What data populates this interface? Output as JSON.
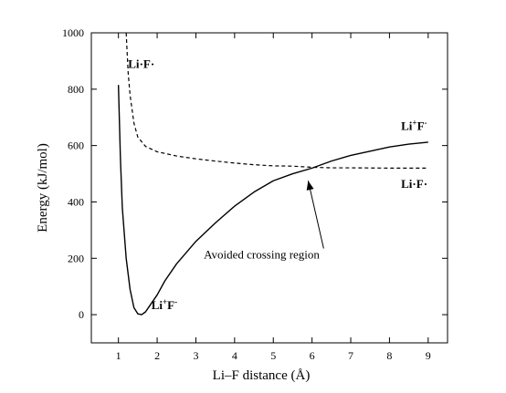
{
  "chart_data": {
    "type": "line",
    "xlabel": "Li–F distance (Å)",
    "ylabel": "Energy (kJ/mol)",
    "xlim": [
      0.3,
      9.5
    ],
    "ylim": [
      -100,
      1000
    ],
    "x_ticks": [
      "1",
      "2",
      "3",
      "4",
      "5",
      "6",
      "7",
      "8",
      "9"
    ],
    "y_ticks": [
      "0",
      "200",
      "400",
      "600",
      "800",
      "1000"
    ],
    "grid": false,
    "series": [
      {
        "style": "solid",
        "points": [
          [
            1.0,
            815
          ],
          [
            1.05,
            560
          ],
          [
            1.1,
            380
          ],
          [
            1.2,
            200
          ],
          [
            1.3,
            90
          ],
          [
            1.4,
            25
          ],
          [
            1.5,
            3
          ],
          [
            1.6,
            0
          ],
          [
            1.7,
            10
          ],
          [
            1.8,
            30
          ],
          [
            2.0,
            70
          ],
          [
            2.2,
            120
          ],
          [
            2.5,
            180
          ],
          [
            3.0,
            260
          ],
          [
            3.5,
            325
          ],
          [
            4.0,
            385
          ],
          [
            4.5,
            435
          ],
          [
            5.0,
            475
          ],
          [
            5.5,
            500
          ],
          [
            6.0,
            520
          ],
          [
            6.5,
            545
          ],
          [
            7.0,
            565
          ],
          [
            7.5,
            580
          ],
          [
            8.0,
            595
          ],
          [
            8.5,
            605
          ],
          [
            9.0,
            612
          ]
        ]
      },
      {
        "style": "dashed",
        "points": [
          [
            1.2,
            1000
          ],
          [
            1.25,
            860
          ],
          [
            1.3,
            780
          ],
          [
            1.4,
            680
          ],
          [
            1.5,
            630
          ],
          [
            1.7,
            597
          ],
          [
            2.0,
            578
          ],
          [
            2.5,
            563
          ],
          [
            3.0,
            553
          ],
          [
            3.5,
            545
          ],
          [
            4.0,
            538
          ],
          [
            4.5,
            532
          ],
          [
            5.0,
            528
          ],
          [
            5.5,
            527
          ],
          [
            6.0,
            523
          ],
          [
            6.5,
            521
          ],
          [
            7.0,
            521
          ],
          [
            8.0,
            520
          ],
          [
            9.0,
            520
          ]
        ]
      }
    ],
    "annotations": [
      {
        "base": "Li",
        "sup": "",
        "mid": "·F",
        "sup2": "",
        "tail": "·",
        "x": 1.25,
        "y": 875,
        "anchor": "start"
      },
      {
        "base": "Li",
        "sup": "+",
        "mid": "F",
        "sup2": "-",
        "tail": "",
        "x": 8.3,
        "y": 655,
        "anchor": "start"
      },
      {
        "base": "Li",
        "sup": "",
        "mid": "·F",
        "sup2": "",
        "tail": "·",
        "x": 8.3,
        "y": 450,
        "anchor": "start"
      },
      {
        "base": "Li",
        "sup": "+",
        "mid": "F",
        "sup2": "-",
        "tail": "",
        "x": 1.85,
        "y": 20,
        "anchor": "start"
      }
    ],
    "callout": {
      "text": "Avoided crossing region",
      "text_x": 4.7,
      "text_y": 200,
      "arrow_from": [
        6.3,
        235
      ],
      "arrow_to": [
        5.9,
        475
      ]
    }
  }
}
